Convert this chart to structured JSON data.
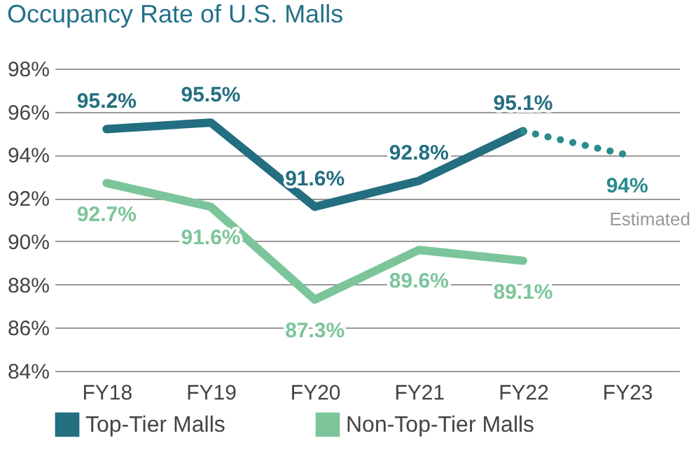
{
  "chart_data": {
    "type": "line",
    "title": "Occupancy Rate of U.S. Malls",
    "categories": [
      "FY18",
      "FY19",
      "FY20",
      "FY21",
      "FY22",
      "FY23"
    ],
    "series": [
      {
        "name": "Top-Tier Malls",
        "color": "#236e80",
        "values": [
          95.2,
          95.5,
          91.6,
          92.8,
          95.1,
          null
        ],
        "value_labels": [
          "95.2%",
          "95.5%",
          "91.6%",
          "92.8%",
          "95.1%",
          null
        ],
        "line_style": "solid"
      },
      {
        "name": "Non-Top-Tier Malls",
        "color": "#7cc59b",
        "values": [
          92.7,
          91.6,
          87.3,
          89.6,
          89.1,
          null
        ],
        "value_labels": [
          "92.7%",
          "91.6%",
          "87.3%",
          "89.6%",
          "89.1%",
          null
        ],
        "line_style": "solid"
      },
      {
        "color": "#2a8c8c",
        "values": [
          null,
          null,
          null,
          null,
          95.1,
          94
        ],
        "value_labels": [
          null,
          null,
          null,
          null,
          null,
          "94%"
        ],
        "line_style": "dotted"
      }
    ],
    "annotations": [
      "Estimated"
    ],
    "ylim": [
      84,
      98
    ],
    "yticks": [
      {
        "value": 84,
        "label": "84%"
      },
      {
        "value": 86,
        "label": "86%"
      },
      {
        "value": 88,
        "label": "88%"
      },
      {
        "value": 90,
        "label": "90%"
      },
      {
        "value": 92,
        "label": "92%"
      },
      {
        "value": 94,
        "label": "94%"
      },
      {
        "value": 96,
        "label": "96%"
      },
      {
        "value": 98,
        "label": "98%"
      }
    ],
    "grid": "y",
    "legend": "bottom",
    "marker": "none"
  }
}
